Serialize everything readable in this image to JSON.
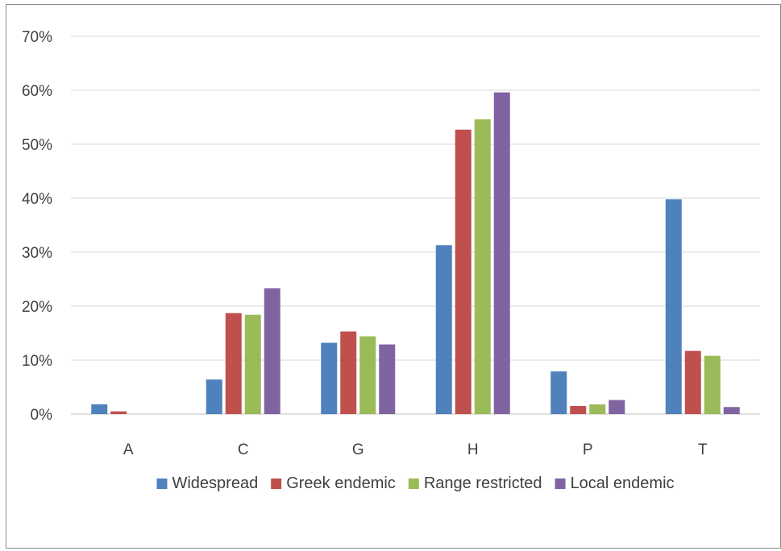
{
  "chart_data": {
    "type": "bar",
    "title": "",
    "xlabel": "",
    "ylabel": "",
    "categories": [
      "A",
      "C",
      "G",
      "H",
      "P",
      "T"
    ],
    "ylim": [
      0,
      70
    ],
    "yticks": [
      "0%",
      "10%",
      "20%",
      "30%",
      "40%",
      "50%",
      "60%",
      "70%"
    ],
    "grid": true,
    "legend_position": "bottom",
    "series": [
      {
        "name": "Widespread",
        "color": "#4f81bd",
        "values": [
          1.8,
          6.4,
          13.2,
          31.3,
          7.9,
          39.8
        ]
      },
      {
        "name": "Greek endemic",
        "color": "#c0504d",
        "values": [
          0.5,
          18.7,
          15.3,
          52.7,
          1.5,
          11.7
        ]
      },
      {
        "name": "Range restricted",
        "color": "#9bbb59",
        "values": [
          0,
          18.4,
          14.4,
          54.6,
          1.8,
          10.8
        ]
      },
      {
        "name": "Local endemic",
        "color": "#8064a2",
        "values": [
          0,
          23.3,
          12.9,
          59.6,
          2.6,
          1.3
        ]
      }
    ]
  }
}
